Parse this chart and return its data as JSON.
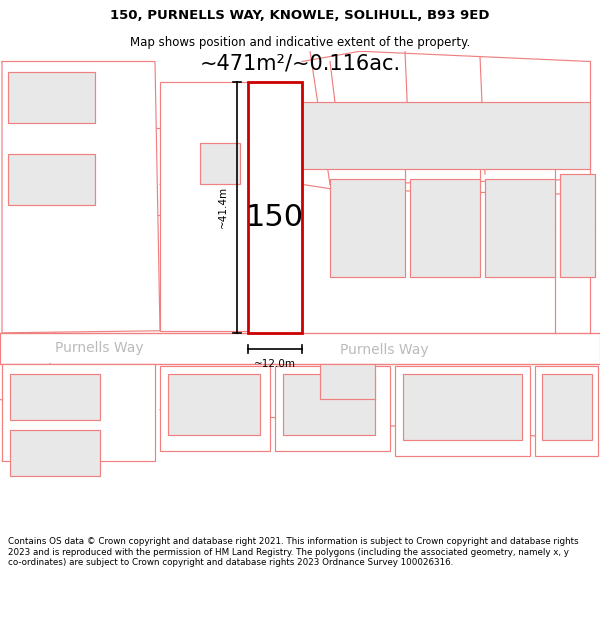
{
  "title": "150, PURNELLS WAY, KNOWLE, SOLIHULL, B93 9ED",
  "subtitle": "Map shows position and indicative extent of the property.",
  "area_text": "~471m²/~0.116ac.",
  "number_label": "150",
  "dim_height": "~41.4m",
  "dim_width": "~12.0m",
  "street_label_left": "Purnells Way",
  "street_label_right": "Purnells Way",
  "footer": "Contains OS data © Crown copyright and database right 2021. This information is subject to Crown copyright and database rights 2023 and is reproduced with the permission of HM Land Registry. The polygons (including the associated geometry, namely x, y co-ordinates) are subject to Crown copyright and database rights 2023 Ordnance Survey 100026316.",
  "bg_color": "#ffffff",
  "plot_outline_color": "#cc0000",
  "other_outline_color": "#f08080",
  "fill_color": "#e8e8e8",
  "title_fontsize": 9.5,
  "subtitle_fontsize": 8.5,
  "number_fontsize": 22,
  "area_fontsize": 15,
  "footer_fontsize": 6.3,
  "street_fontsize": 10
}
